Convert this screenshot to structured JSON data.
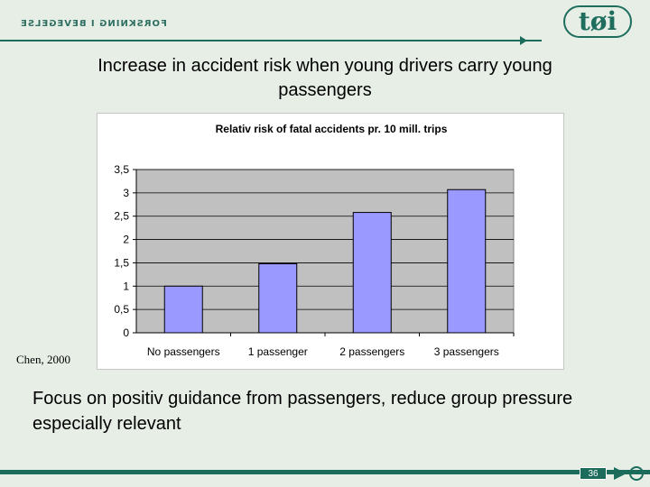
{
  "header": {
    "text": "FORSKNING I BEVEGELSE",
    "logo_text": "tøi"
  },
  "slide": {
    "title": "Increase in accident risk when young drivers carry young passengers",
    "source": "Chen, 2000",
    "body": "Focus on positiv guidance from passengers, reduce group pressure especially relevant",
    "page_number": "36"
  },
  "chart_data": {
    "type": "bar",
    "title": "Relativ risk of fatal accidents pr. 10 mill. trips",
    "xlabel": "",
    "ylabel": "",
    "categories": [
      "No passengers",
      "1 passenger",
      "2 passengers",
      "3 passengers"
    ],
    "values": [
      1,
      1.48,
      2.58,
      3.07
    ],
    "ylim": [
      0,
      3.5
    ],
    "yticks": [
      "0",
      "0,5",
      "1",
      "1,5",
      "2",
      "2,5",
      "3",
      "3,5"
    ],
    "grid": true,
    "legend": "none",
    "colors": {
      "bar": "#9999ff",
      "bar_border": "#000000",
      "plot_bg": "#c0c0c0",
      "gridline": "#000000"
    }
  },
  "colors": {
    "background": "#e6eee6",
    "accent": "#1c6c5c"
  }
}
